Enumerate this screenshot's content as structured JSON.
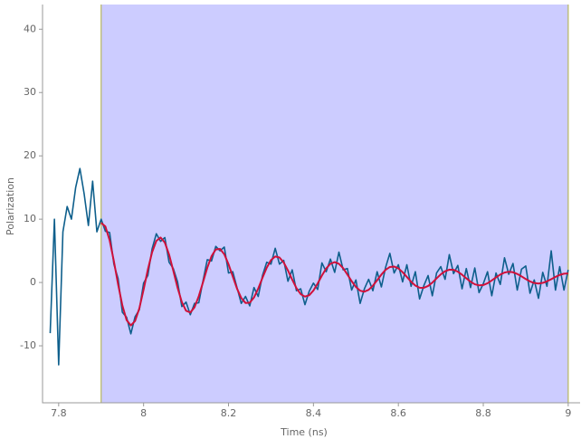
{
  "chart_data": {
    "type": "line",
    "x_label": "Time (ns)",
    "y_label": "Polarization",
    "xlim": [
      7.762,
      9.028
    ],
    "ylim": [
      -19,
      43.9
    ],
    "xticks": [
      7.8,
      8,
      8.2,
      8.4,
      8.6,
      8.8,
      9
    ],
    "yticks": [
      -10,
      0,
      10,
      20,
      30,
      40
    ],
    "grid": false,
    "region": {
      "x": [
        7.9,
        9.0
      ],
      "color": "#ccccff",
      "edge_color": "#b8b860"
    },
    "series": [
      {
        "color": "#0e5f8c",
        "x": [
          7.78,
          7.79,
          7.8,
          7.81,
          7.82,
          7.83,
          7.84,
          7.85,
          7.86,
          7.87,
          7.88,
          7.89,
          7.9,
          7.91,
          7.92,
          7.93,
          7.94,
          7.95,
          7.96,
          7.97,
          7.98,
          7.99,
          8,
          8.01,
          8.02,
          8.03,
          8.04,
          8.05,
          8.06,
          8.07,
          8.08,
          8.09,
          8.1,
          8.11,
          8.12,
          8.13,
          8.14,
          8.15,
          8.16,
          8.17,
          8.18,
          8.19,
          8.2,
          8.21,
          8.22,
          8.23,
          8.24,
          8.25,
          8.26,
          8.27,
          8.28,
          8.29,
          8.3,
          8.31,
          8.32,
          8.33,
          8.34,
          8.35,
          8.36,
          8.37,
          8.38,
          8.39,
          8.4,
          8.41,
          8.42,
          8.43,
          8.44,
          8.45,
          8.46,
          8.47,
          8.48,
          8.49,
          8.5,
          8.51,
          8.52,
          8.53,
          8.54,
          8.55,
          8.56,
          8.57,
          8.58,
          8.59,
          8.6,
          8.61,
          8.62,
          8.63,
          8.64,
          8.65,
          8.66,
          8.67,
          8.68,
          8.69,
          8.7,
          8.71,
          8.72,
          8.73,
          8.74,
          8.75,
          8.76,
          8.77,
          8.78,
          8.79,
          8.8,
          8.81,
          8.82,
          8.83,
          8.84,
          8.85,
          8.86,
          8.87,
          8.88,
          8.89,
          8.9,
          8.91,
          8.92,
          8.93,
          8.94,
          8.95,
          8.96,
          8.97,
          8.98,
          8.99,
          9
        ],
        "values": [
          -8,
          10,
          -13,
          8,
          12,
          10,
          15,
          18,
          14,
          9,
          16,
          8,
          10,
          8.1,
          7.9,
          2.9,
          0.6,
          -4.7,
          -5.5,
          -8.1,
          -5.4,
          -4.3,
          -0.1,
          1.1,
          5.3,
          7.7,
          6.5,
          7.1,
          3.2,
          2.2,
          0.1,
          -3.8,
          -3.1,
          -5.1,
          -3.3,
          -3.2,
          0.3,
          3.6,
          3.4,
          5.7,
          5,
          5.6,
          1.5,
          1.7,
          -0.8,
          -3.3,
          -2.2,
          -3.7,
          -0.8,
          -2.2,
          1.1,
          3.2,
          2.9,
          5.4,
          2.9,
          3.5,
          0.2,
          2,
          -1.3,
          -1,
          -3.5,
          -1.4,
          -0.1,
          -1.1,
          3.1,
          1.7,
          3.7,
          1.6,
          4.8,
          2,
          2.2,
          -1.2,
          0.4,
          -3.3,
          -1,
          0.5,
          -1.3,
          1.7,
          -0.7,
          2.4,
          4.6,
          1.5,
          2.8,
          0.1,
          2.8,
          -0.6,
          1.7,
          -2.6,
          -0.5,
          1.1,
          -2.1,
          1.5,
          2.5,
          0.5,
          4.4,
          1.4,
          2.7,
          -1,
          2.2,
          -0.8,
          2.3,
          -1.6,
          -0.2,
          1.7,
          -2.1,
          1.5,
          -0.3,
          3.9,
          1.3,
          3,
          -1.2,
          2.1,
          2.6,
          -1.7,
          0.4,
          -2.5,
          1.6,
          -0.6,
          5,
          -1.2,
          2.5,
          -1.2,
          2
        ]
      },
      {
        "color": "#d0103a",
        "x": [
          7.9,
          7.91,
          7.92,
          7.93,
          7.94,
          7.95,
          7.96,
          7.97,
          7.98,
          7.99,
          8,
          8.01,
          8.02,
          8.03,
          8.04,
          8.05,
          8.06,
          8.07,
          8.08,
          8.09,
          8.1,
          8.11,
          8.12,
          8.13,
          8.14,
          8.15,
          8.16,
          8.17,
          8.18,
          8.19,
          8.2,
          8.21,
          8.22,
          8.23,
          8.24,
          8.25,
          8.26,
          8.27,
          8.28,
          8.29,
          8.3,
          8.31,
          8.32,
          8.33,
          8.34,
          8.35,
          8.36,
          8.37,
          8.38,
          8.39,
          8.4,
          8.41,
          8.42,
          8.43,
          8.44,
          8.45,
          8.46,
          8.47,
          8.48,
          8.49,
          8.5,
          8.51,
          8.52,
          8.53,
          8.54,
          8.55,
          8.56,
          8.57,
          8.58,
          8.59,
          8.6,
          8.61,
          8.62,
          8.63,
          8.64,
          8.65,
          8.66,
          8.67,
          8.68,
          8.69,
          8.7,
          8.71,
          8.72,
          8.73,
          8.74,
          8.75,
          8.76,
          8.77,
          8.78,
          8.79,
          8.8,
          8.81,
          8.82,
          8.83,
          8.84,
          8.85,
          8.86,
          8.87,
          8.88,
          8.89,
          8.9,
          8.91,
          8.92,
          8.93,
          8.94,
          8.95,
          8.96,
          8.97,
          8.98,
          8.99,
          9
        ],
        "values": [
          9.41,
          8.85,
          6.67,
          3.38,
          -0.31,
          -3.62,
          -5.94,
          -6.78,
          -6.08,
          -4.07,
          -1.14,
          2.03,
          4.77,
          6.57,
          7.1,
          6.3,
          4.42,
          1.86,
          -0.82,
          -3.08,
          -4.46,
          -4.74,
          -3.91,
          -2.16,
          0.06,
          2.33,
          4.15,
          5.22,
          5.3,
          4.47,
          2.89,
          0.95,
          -0.96,
          -2.44,
          -3.23,
          -3.19,
          -2.37,
          -0.95,
          0.74,
          2.33,
          3.54,
          4.1,
          3.95,
          3.16,
          1.9,
          0.45,
          -0.89,
          -1.84,
          -2.23,
          -2.01,
          -1.27,
          -0.15,
          1.1,
          2.21,
          2.96,
          3.22,
          2.95,
          2.25,
          1.26,
          0.21,
          -0.71,
          -1.3,
          -1.45,
          -1.16,
          -0.51,
          0.35,
          1.25,
          2,
          2.45,
          2.52,
          2.23,
          1.63,
          0.88,
          0.12,
          -0.49,
          -0.83,
          -0.84,
          -0.55,
          -0.02,
          0.65,
          1.29,
          1.78,
          2.03,
          2,
          1.71,
          1.23,
          0.66,
          0.13,
          -0.28,
          -0.45,
          -0.4,
          -0.12,
          0.32,
          0.81,
          1.26,
          1.57,
          1.7,
          1.62,
          1.35,
          0.97,
          0.55,
          0.17,
          -0.08,
          -0.16,
          -0.06,
          0.19,
          0.52,
          0.88,
          1.19,
          1.39,
          1.43
        ]
      }
    ]
  }
}
